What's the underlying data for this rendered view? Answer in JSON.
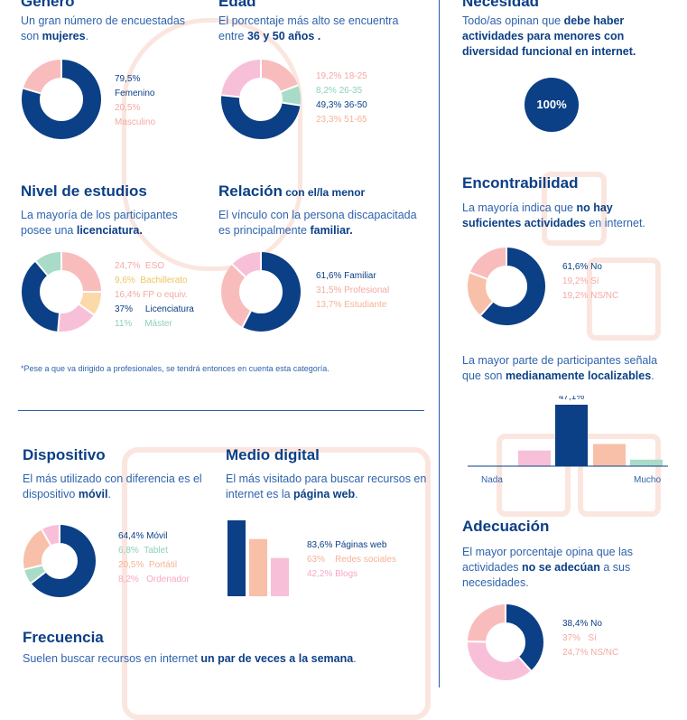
{
  "sections": {
    "genero": {
      "title": "Género",
      "sub_pre": "Un gran número de encuestadas son ",
      "sub_bold": "mujeres",
      "sub_post": "."
    },
    "edad": {
      "title": "Edad",
      "sub_pre": "El porcentaje más alto se encuentra entre ",
      "sub_bold": "36 y 50 años ."
    },
    "necesidad": {
      "title": "Necesidad",
      "sub_pre": "Todo/as opinan que ",
      "sub_bold": "debe haber actividades para menores con diversidad funcional en internet."
    },
    "estudios": {
      "title": "Nivel de estudios",
      "sub_pre": "La mayoría de los participantes posee una ",
      "sub_bold": "licenciatura."
    },
    "relacion": {
      "title": "Relación",
      "title_small": " con el/la menor",
      "sub_pre": "El vínculo con la persona discapacitada es principalmente ",
      "sub_bold": "familiar."
    },
    "encontrabilidad": {
      "title": "Encontrabilidad",
      "sub_pre": "La mayoría indica que ",
      "sub_bold": "no hay suficientes actividades",
      "sub_post": " en internet."
    },
    "localizables": {
      "sub_pre": "La mayor parte de participantes señala que son ",
      "sub_bold": "medianamente localizables",
      "sub_post": "."
    },
    "dispositivo": {
      "title": "Dispositivo",
      "sub_pre": "El más utilizado con diferencia es el dispositivo ",
      "sub_bold": "móvil",
      "sub_post": "."
    },
    "medio": {
      "title": "Medio digital",
      "sub_pre": "El más visitado para buscar recursos en internet es la ",
      "sub_bold": "página web",
      "sub_post": "."
    },
    "adecuacion": {
      "title": "Adecuación",
      "sub_pre": "El mayor porcentaje opina que las actividades ",
      "sub_bold": "no se adecúan",
      "sub_post": " a sus necesidades."
    },
    "frecuencia": {
      "title": "Frecuencia",
      "sub_pre": "Suelen buscar recursos en internet ",
      "sub_bold": "un par de veces a la semana",
      "sub_post": "."
    }
  },
  "note": "*Pese a que va dirigido a profesionales, se tendrá entonces en cuenta esta categoría.",
  "colors": {
    "blue": "#0b3f86",
    "pink": "#f9bcbc",
    "salmon": "#f8c0a8",
    "green": "#a8dcc8",
    "lpink": "#f8c0d8",
    "yellow": "#fbd9a8"
  },
  "chart_data": [
    {
      "type": "pie",
      "id": "genero",
      "labels": [
        "Femenino",
        "Masculino"
      ],
      "values": [
        79.5,
        20.5
      ],
      "value_labels": [
        "79,5%",
        "20,5%"
      ]
    },
    {
      "type": "pie",
      "id": "edad",
      "labels": [
        "18-25",
        "26-35",
        "36-50",
        "51-65"
      ],
      "values": [
        19.2,
        8.2,
        49.3,
        23.3
      ],
      "value_labels": [
        "19,2%",
        "8,2%",
        "49,3%",
        "23,3%"
      ]
    },
    {
      "type": "pie",
      "id": "necesidad",
      "labels": [
        ""
      ],
      "values": [
        100
      ],
      "value_labels": [
        "100%"
      ]
    },
    {
      "type": "pie",
      "id": "estudios",
      "labels": [
        "ESO",
        "Bachillerato",
        "FP o equiv.",
        "Licenciatura",
        "Máster"
      ],
      "values": [
        24.7,
        9.6,
        16.4,
        37,
        11
      ],
      "value_labels": [
        "24,7%",
        "9,6%",
        "16,4%",
        "37%",
        "11%"
      ]
    },
    {
      "type": "pie",
      "id": "relacion",
      "labels": [
        "Familiar",
        "Profesional",
        "Estudiante"
      ],
      "values": [
        61.6,
        31.5,
        13.7
      ],
      "value_labels": [
        "61,6%",
        "31,5%",
        "13,7%"
      ]
    },
    {
      "type": "pie",
      "id": "encontrabilidad",
      "labels": [
        "No",
        "Sí",
        "NS/NC"
      ],
      "values": [
        61.6,
        19.2,
        19.2
      ],
      "value_labels": [
        "61,6%",
        "19,2%",
        "19,2%"
      ]
    },
    {
      "type": "bar",
      "id": "localizables",
      "categories": [
        "1",
        "2",
        "3",
        "4",
        "5"
      ],
      "values": [
        0,
        12,
        47.1,
        17,
        5
      ],
      "value_label": "47,1%",
      "xlabels": [
        "Nada",
        "Mucho"
      ]
    },
    {
      "type": "pie",
      "id": "dispositivo",
      "labels": [
        "Móvil",
        "Tablet",
        "Portátil",
        "Ordenador"
      ],
      "values": [
        64.4,
        6.8,
        20.5,
        8.2
      ],
      "value_labels": [
        "64,4%",
        "6,8%",
        "20,5%",
        "8,2%"
      ]
    },
    {
      "type": "bar",
      "id": "medio",
      "categories": [
        "Páginas web",
        "Redes sociales",
        "Blogs"
      ],
      "values": [
        83.6,
        63,
        42.2
      ],
      "value_labels": [
        "83,6%",
        "63%",
        "42,2%"
      ]
    },
    {
      "type": "pie",
      "id": "adecuacion",
      "labels": [
        "No",
        "Sí",
        "NS/NC"
      ],
      "values": [
        38.4,
        37,
        24.7
      ],
      "value_labels": [
        "38,4%",
        "37%",
        "24,7%"
      ]
    }
  ]
}
